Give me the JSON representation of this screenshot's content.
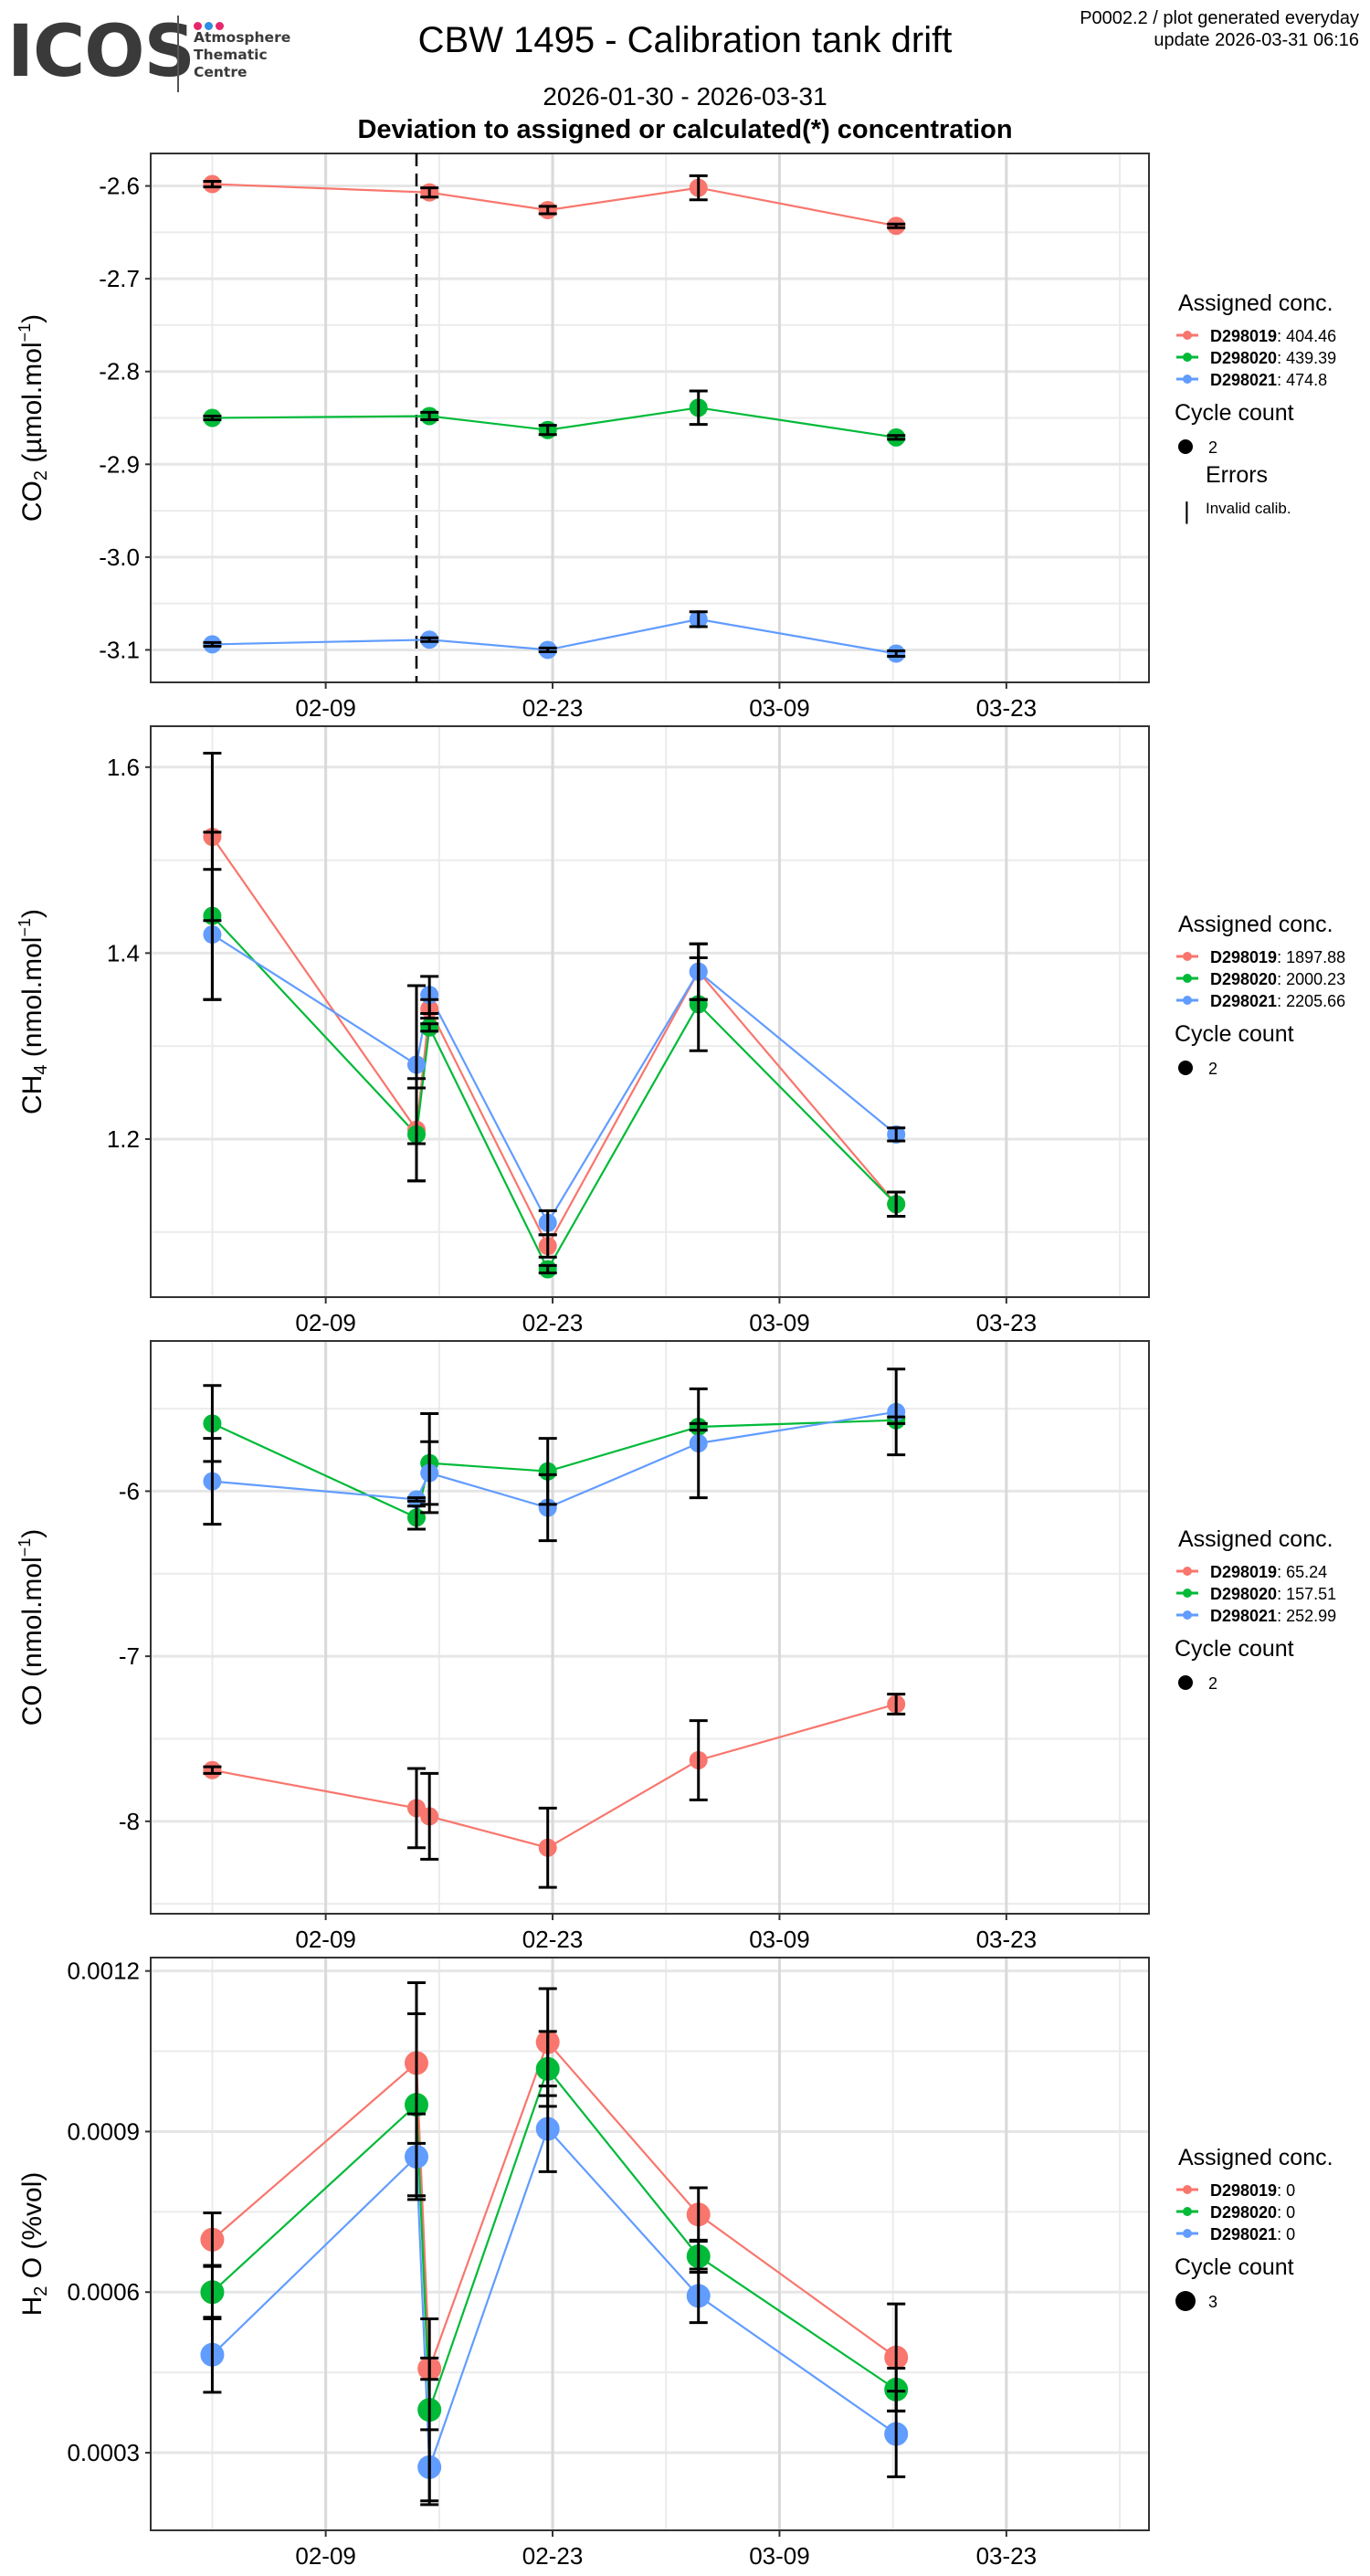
{
  "header": {
    "logo": {
      "word": "ICOS",
      "lines": [
        "Atmosphere",
        "Thematic",
        "Centre"
      ],
      "dot_colors": [
        "#e5276c",
        "#2b8fe3",
        "#e5276c"
      ]
    },
    "title": "CBW 1495 - Calibration tank drift",
    "date_range": "2026-01-30 - 2026-03-31",
    "subtitle": "Deviation to assigned or calculated(*) concentration",
    "meta_line1": "P0002.2 / plot generated everyday",
    "meta_line2": "update  2026-03-31 06:16"
  },
  "colors": {
    "D298019": "#F8766D",
    "D298020": "#00BA38",
    "D298021": "#619CFF",
    "errorbar": "#000000",
    "grid_major": "#d9d9d9",
    "grid_minor": "#ebebeb",
    "panel_border": "#333333"
  },
  "chart_data": [
    {
      "type": "line",
      "id": "co2",
      "ylabel": "CO2 (µmol.mol-1)",
      "ylabel_main": "CO",
      "ylabel_sub": "2",
      "ylabel_unit": "(µmol.mol",
      "ylabel_sup": "−1",
      "xlabel": "",
      "xlim": [
        "2026-01-30",
        "2026-03-31"
      ],
      "x_ticks": [
        {
          "date": "2026-02-09",
          "label": "02-09"
        },
        {
          "date": "2026-02-23",
          "label": "02-23"
        },
        {
          "date": "2026-03-09",
          "label": "03-09"
        },
        {
          "date": "2026-03-23",
          "label": "03-23"
        }
      ],
      "ylim": [
        -3.135,
        -2.565
      ],
      "y_ticks": [
        -2.6,
        -2.7,
        -2.8,
        -2.9,
        -3.0,
        -3.1
      ],
      "y_tick_labels": [
        "-2.6",
        "-2.7",
        "-2.8",
        "-2.9",
        "-3.0",
        "-3.1"
      ],
      "grid": true,
      "vline": {
        "date": "2026-02-14.6",
        "style": "dashed"
      },
      "x": [
        "2026-02-02",
        "2026-02-15.4",
        "2026-02-22.7",
        "2026-03-04",
        "2026-03-16.2"
      ],
      "series": [
        {
          "name": "D298019",
          "values": [
            -2.598,
            -2.607,
            -2.626,
            -2.602,
            -2.643
          ],
          "err": [
            0.003,
            0.005,
            0.004,
            0.013,
            0.002
          ]
        },
        {
          "name": "D298020",
          "values": [
            -2.85,
            -2.848,
            -2.863,
            -2.839,
            -2.871
          ],
          "err": [
            0.002,
            0.004,
            0.005,
            0.018,
            0.002
          ]
        },
        {
          "name": "D298021",
          "values": [
            -3.094,
            -3.089,
            -3.1,
            -3.067,
            -3.104
          ],
          "err": [
            0.002,
            0.002,
            0.002,
            0.008,
            0.003
          ]
        }
      ],
      "legend": {
        "position": "right",
        "title": "Assigned conc.",
        "entries": [
          {
            "tank": "D298019",
            "value": ": 404.46"
          },
          {
            "tank": "D298020",
            "value": ": 439.39"
          },
          {
            "tank": "D298021",
            "value": ": 474.8"
          }
        ],
        "size_title": "Cycle count",
        "size_label": "2",
        "errors_title": "Errors",
        "errors_label": "Invalid calib.",
        "errors_glyph": "|"
      },
      "point_size": 2
    },
    {
      "type": "line",
      "id": "ch4",
      "ylabel": "CH4 (nmol.mol-1)",
      "ylabel_main": "CH",
      "ylabel_sub": "4",
      "ylabel_unit": "(nmol.mol",
      "ylabel_sup": "−1",
      "xlabel": "",
      "xlim": [
        "2026-01-30",
        "2026-03-31"
      ],
      "x_ticks": [
        {
          "date": "2026-02-09",
          "label": "02-09"
        },
        {
          "date": "2026-02-23",
          "label": "02-23"
        },
        {
          "date": "2026-03-09",
          "label": "03-09"
        },
        {
          "date": "2026-03-23",
          "label": "03-23"
        }
      ],
      "ylim": [
        1.03,
        1.644
      ],
      "y_ticks": [
        1.2,
        1.4,
        1.6
      ],
      "y_tick_labels": [
        "1.2",
        "1.4",
        "1.6"
      ],
      "grid": true,
      "x": [
        "2026-02-02",
        "2026-02-14.6",
        "2026-02-15.4",
        "2026-02-22.7",
        "2026-03-04",
        "2026-03-16.2"
      ],
      "series": [
        {
          "name": "D298019",
          "values": [
            1.525,
            1.21,
            1.34,
            1.085,
            1.38,
            1.13
          ],
          "err": [
            0.09,
            0.055,
            0.01,
            0.012,
            0.03,
            0.013
          ]
        },
        {
          "name": "D298020",
          "values": [
            1.44,
            1.205,
            1.32,
            1.06,
            1.345,
            1.13
          ],
          "err": [
            0.09,
            0.05,
            0.004,
            0.004,
            0.05,
            0.013
          ]
        },
        {
          "name": "D298021",
          "values": [
            1.42,
            1.28,
            1.355,
            1.11,
            1.38,
            1.205
          ],
          "err": [
            0.07,
            0.085,
            0.02,
            0.013,
            0.03,
            0.007
          ]
        }
      ],
      "legend": {
        "position": "right",
        "title": "Assigned conc.",
        "entries": [
          {
            "tank": "D298019",
            "value": ": 1897.88"
          },
          {
            "tank": "D298020",
            "value": ": 2000.23"
          },
          {
            "tank": "D298021",
            "value": ": 2205.66"
          }
        ],
        "size_title": "Cycle count",
        "size_label": "2"
      },
      "point_size": 2
    },
    {
      "type": "line",
      "id": "co",
      "ylabel": "CO (nmol.mol-1)",
      "ylabel_main": "CO",
      "ylabel_sub": "",
      "ylabel_unit": "(nmol.mol",
      "ylabel_sup": "−1",
      "xlabel": "",
      "xlim": [
        "2026-01-30",
        "2026-03-31"
      ],
      "x_ticks": [
        {
          "date": "2026-02-09",
          "label": "02-09"
        },
        {
          "date": "2026-02-23",
          "label": "02-23"
        },
        {
          "date": "2026-03-09",
          "label": "03-09"
        },
        {
          "date": "2026-03-23",
          "label": "03-23"
        }
      ],
      "ylim": [
        -8.56,
        -5.09
      ],
      "y_ticks": [
        -6,
        -7,
        -8
      ],
      "y_tick_labels": [
        "-6",
        "-7",
        "-8"
      ],
      "grid": true,
      "x": [
        "2026-02-02",
        "2026-02-14.6",
        "2026-02-15.4",
        "2026-02-22.7",
        "2026-03-04",
        "2026-03-16.2"
      ],
      "series": [
        {
          "name": "D298019",
          "values": [
            -7.69,
            -7.92,
            -7.97,
            -8.16,
            -7.63,
            -7.29
          ],
          "err": [
            0.02,
            0.24,
            0.26,
            0.24,
            0.24,
            0.06
          ]
        },
        {
          "name": "D298020",
          "values": [
            -5.59,
            -6.16,
            -5.83,
            -5.88,
            -5.61,
            -5.57
          ],
          "err": [
            0.23,
            0.07,
            0.3,
            0.2,
            0.02,
            0.02
          ]
        },
        {
          "name": "D298021",
          "values": [
            -5.94,
            -6.05,
            -5.89,
            -6.1,
            -5.71,
            -5.52
          ],
          "err": [
            0.26,
            0.01,
            0.19,
            0.2,
            0.33,
            0.26
          ]
        }
      ],
      "legend": {
        "position": "right",
        "title": "Assigned conc.",
        "entries": [
          {
            "tank": "D298019",
            "value": ": 65.24"
          },
          {
            "tank": "D298020",
            "value": ": 157.51"
          },
          {
            "tank": "D298021",
            "value": ": 252.99"
          }
        ],
        "size_title": "Cycle count",
        "size_label": "2"
      },
      "point_size": 2
    },
    {
      "type": "line",
      "id": "h2o",
      "ylabel": "H2O (%vol)",
      "ylabel_main": "H",
      "ylabel_sub": "2",
      "ylabel_unit": "O (%vol)",
      "ylabel_sup": "",
      "xlabel": "",
      "xlim": [
        "2026-01-30",
        "2026-03-31"
      ],
      "x_ticks": [
        {
          "date": "2026-02-09",
          "label": "02-09"
        },
        {
          "date": "2026-02-23",
          "label": "02-23"
        },
        {
          "date": "2026-03-09",
          "label": "03-09"
        },
        {
          "date": "2026-03-23",
          "label": "03-23"
        }
      ],
      "ylim": [
        0.000155,
        0.001225
      ],
      "y_ticks": [
        0.0003,
        0.0006,
        0.0009,
        0.0012
      ],
      "y_tick_labels": [
        "0.0003",
        "0.0006",
        "0.0009",
        "0.0012"
      ],
      "grid": true,
      "x": [
        "2026-02-02",
        "2026-02-14.6",
        "2026-02-15.4",
        "2026-02-22.7",
        "2026-03-04",
        "2026-03-16.2"
      ],
      "series": [
        {
          "name": "D298019",
          "values": [
            0.000698,
            0.001028,
            0.000457,
            0.001067,
            0.000745,
            0.000478
          ],
          "err": [
            5e-05,
            0.00015,
            2e-05,
            0.0001,
            5e-05,
            0.0001
          ]
        },
        {
          "name": "D298020",
          "values": [
            0.0006,
            0.00095,
            0.00038,
            0.001017,
            0.000667,
            0.000418
          ],
          "err": [
            5e-05,
            0.00017,
            0.00017,
            7e-05,
            3e-05,
            4e-05
          ]
        },
        {
          "name": "D298021",
          "values": [
            0.000483,
            0.000853,
            0.000273,
            0.000905,
            0.000593,
            0.000335
          ],
          "err": [
            7e-05,
            8e-05,
            7e-05,
            8e-05,
            5e-05,
            8e-05
          ]
        }
      ],
      "legend": {
        "position": "right",
        "title": "Assigned conc.",
        "entries": [
          {
            "tank": "D298019",
            "value": ": 0"
          },
          {
            "tank": "D298020",
            "value": ": 0"
          },
          {
            "tank": "D298021",
            "value": ": 0"
          }
        ],
        "size_title": "Cycle count",
        "size_label": "3"
      },
      "point_size": 3
    }
  ]
}
